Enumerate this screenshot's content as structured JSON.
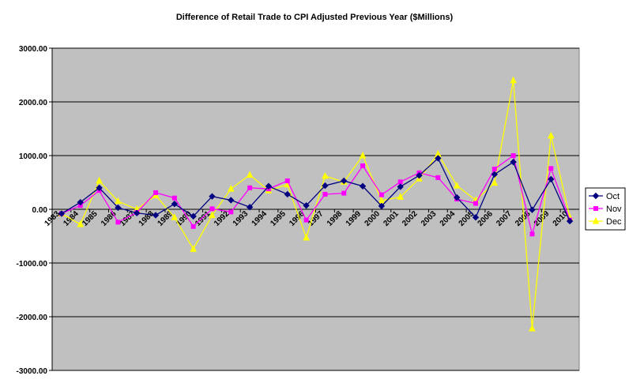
{
  "chart_data": {
    "type": "line",
    "title": "Difference of Retail Trade to CPI Adjusted Previous Year ($Millions)",
    "xlabel": "",
    "ylabel": "",
    "ylim": [
      -3000,
      3000
    ],
    "y_ticks": [
      "3000.00",
      "2000.00",
      "1000.00",
      "0.00",
      "-1000.00",
      "-2000.00",
      "-3000.00"
    ],
    "y_tick_values": [
      3000,
      2000,
      1000,
      0,
      -1000,
      -2000,
      -3000
    ],
    "grid": true,
    "legend_position": "right",
    "categories": [
      "1983",
      "1984",
      "1985",
      "1986",
      "1987",
      "1988",
      "1989",
      "1990",
      "1991",
      "1992",
      "1993",
      "1994",
      "1995",
      "1996",
      "1997",
      "1998",
      "1999",
      "2000",
      "2001",
      "2002",
      "2003",
      "2004",
      "2005",
      "2006",
      "2007",
      "2008",
      "2009",
      "2010"
    ],
    "series": [
      {
        "name": "Oct",
        "color": "#000080",
        "marker": "diamond",
        "values": [
          -80,
          130,
          400,
          30,
          -70,
          -110,
          100,
          -130,
          240,
          170,
          40,
          430,
          280,
          70,
          440,
          530,
          430,
          60,
          420,
          630,
          950,
          220,
          -150,
          650,
          880,
          -10,
          560,
          -220
        ]
      },
      {
        "name": "Nov",
        "color": "#ff00ff",
        "marker": "square",
        "values": [
          -80,
          70,
          350,
          -240,
          -60,
          310,
          210,
          -320,
          10,
          -50,
          400,
          380,
          530,
          -200,
          280,
          300,
          810,
          270,
          510,
          680,
          590,
          190,
          110,
          750,
          1000,
          -460,
          760,
          -200
        ]
      },
      {
        "name": "Dec",
        "color": "#ffff00",
        "marker": "triangle",
        "values": [
          -80,
          -280,
          530,
          150,
          0,
          260,
          -150,
          -740,
          -110,
          380,
          640,
          350,
          460,
          -530,
          620,
          510,
          1000,
          160,
          230,
          570,
          1030,
          440,
          170,
          490,
          2400,
          -2220,
          1370,
          -150
        ]
      }
    ]
  }
}
